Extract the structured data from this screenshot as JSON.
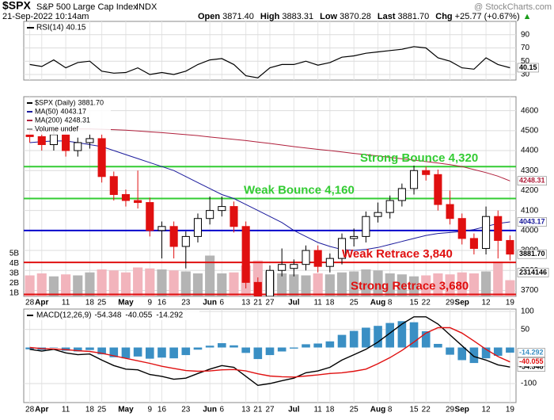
{
  "header": {
    "symbol": "$SPX",
    "name": "S&P 500 Large Cap Index",
    "exchange": "INDX",
    "date": "21-Sep-2022 10:14am",
    "quote": [
      {
        "label": "Open",
        "value": "3871.40"
      },
      {
        "label": "High",
        "value": "3883.31"
      },
      {
        "label": "Low",
        "value": "3870.28"
      },
      {
        "label": "Last",
        "value": "3881.70"
      },
      {
        "label": "Chg",
        "value": "+25.77 (+0.67%)"
      }
    ],
    "arrow": "▲",
    "watermark": "@ StockCharts.com"
  },
  "chart_data": [
    {
      "type": "line",
      "ylim": [
        21.6,
        110
      ],
      "yticks": [
        90,
        70,
        50,
        30
      ],
      "series": [
        {
          "name": "RSI(14)",
          "color": "#000000",
          "values": [
            45,
            42,
            52,
            40,
            48,
            50,
            35,
            32,
            33,
            40,
            30,
            33,
            30,
            35,
            45,
            52,
            54,
            45,
            28,
            25,
            40,
            45,
            45,
            50,
            44,
            48,
            56,
            58,
            62,
            64,
            66,
            68,
            72,
            70,
            55,
            50,
            40,
            38,
            55,
            45,
            40.15
          ]
        }
      ]
    },
    {
      "type": "candlestick",
      "name": "$SPX (Daily)",
      "last_label": "3881.70",
      "categories": [
        "28",
        "Apr",
        null,
        "11",
        null,
        "18",
        "25",
        null,
        "May",
        null,
        "9",
        "16",
        null,
        "23",
        null,
        "Jun",
        "6",
        null,
        "13",
        "21",
        "27",
        null,
        "Jul",
        null,
        "11",
        "18",
        null,
        "25",
        null,
        "Aug",
        "8",
        null,
        "15",
        "22",
        null,
        "29",
        "Sep",
        null,
        "12",
        null,
        "19"
      ],
      "open": [
        4480,
        4470,
        4430,
        4480,
        4400,
        4440,
        4460,
        4270,
        4180,
        4150,
        4140,
        4000,
        4020,
        3920,
        3970,
        4060,
        4100,
        4120,
        4020,
        3740,
        3670,
        3800,
        3810,
        3830,
        3900,
        3820,
        3860,
        3960,
        3970,
        4070,
        4090,
        4150,
        4210,
        4300,
        4280,
        4130,
        4060,
        3960,
        3910,
        4070,
        3950
      ],
      "high": [
        4505,
        4495,
        4505,
        4505,
        4465,
        4485,
        4485,
        4295,
        4205,
        4300,
        4165,
        4045,
        4045,
        3995,
        4085,
        4170,
        4170,
        4145,
        4045,
        3765,
        3825,
        3910,
        3855,
        3925,
        3925,
        3885,
        3985,
        4010,
        4095,
        4140,
        4175,
        4235,
        4325,
        4320,
        4305,
        4200,
        4085,
        3985,
        4120,
        4100,
        3975
      ],
      "low": [
        4440,
        4400,
        4400,
        4370,
        4370,
        4410,
        4240,
        4150,
        4120,
        4110,
        3970,
        3860,
        3860,
        3810,
        3940,
        4030,
        4070,
        3990,
        3710,
        3640,
        3640,
        3770,
        3770,
        3800,
        3790,
        3790,
        3830,
        3920,
        3940,
        4040,
        4060,
        4120,
        4180,
        4250,
        4100,
        4030,
        3930,
        3880,
        3880,
        3860,
        3850
      ],
      "close": [
        4470,
        4430,
        4480,
        4400,
        4440,
        4460,
        4270,
        4180,
        4150,
        4140,
        4000,
        4020,
        3920,
        3970,
        4060,
        4100,
        4120,
        4020,
        3740,
        3670,
        3800,
        3830,
        3830,
        3900,
        3820,
        3860,
        3960,
        3970,
        4070,
        4090,
        4150,
        4210,
        4300,
        4280,
        4130,
        4060,
        3960,
        3910,
        4070,
        3950,
        3881.7
      ],
      "up_color": "#000000",
      "down_color": "#e01010",
      "ylim": [
        3670,
        4670
      ],
      "yticks": [
        3700,
        3800,
        3900,
        4000,
        4100,
        4200,
        4300,
        4400,
        4500,
        4600
      ],
      "series": [
        {
          "name": "MA(50)",
          "color": "#1a1a9c",
          "values": [
            4440,
            4445,
            4448,
            4448,
            4440,
            4430,
            4420,
            4400,
            4380,
            4360,
            4340,
            4320,
            4300,
            4270,
            4240,
            4210,
            4180,
            4160,
            4130,
            4100,
            4070,
            4040,
            4000,
            3970,
            3940,
            3920,
            3905,
            3900,
            3905,
            3915,
            3930,
            3945,
            3960,
            3975,
            3985,
            3990,
            3995,
            4005,
            4020,
            4035,
            4043.17
          ]
        },
        {
          "name": "MA(200)",
          "color": "#b0203c",
          "values": [
            4500,
            4503,
            4505,
            4507,
            4508,
            4508,
            4507,
            4505,
            4502,
            4498,
            4494,
            4490,
            4485,
            4480,
            4475,
            4468,
            4462,
            4456,
            4450,
            4443,
            4436,
            4428,
            4420,
            4413,
            4406,
            4400,
            4393,
            4386,
            4380,
            4373,
            4366,
            4359,
            4352,
            4345,
            4338,
            4330,
            4320,
            4305,
            4290,
            4272,
            4248.31
          ]
        }
      ],
      "volume": {
        "name": "Volume undef",
        "up_color": "#b4b4b4",
        "down_color": "#f2b4bc",
        "last_label": "2314146",
        "values": [
          2.8,
          3.0,
          2.7,
          2.9,
          2.8,
          3.1,
          3.4,
          3.3,
          3.1,
          3.6,
          3.5,
          3.4,
          3.3,
          3.2,
          3.0,
          4.8,
          3.0,
          3.1,
          3.8,
          4.3,
          3.2,
          3.0,
          2.9,
          2.8,
          3.0,
          2.9,
          3.1,
          3.2,
          3.4,
          3.3,
          3.0,
          2.9,
          2.7,
          2.8,
          3.0,
          2.9,
          3.1,
          3.0,
          3.2,
          4.2,
          2.314146
        ],
        "ylim": [
          0.68,
          20.84
        ],
        "yticks": [
          {
            "value": 1,
            "label": "1B"
          },
          {
            "value": 2,
            "label": "2B"
          },
          {
            "value": 3,
            "label": "3B"
          },
          {
            "value": 4,
            "label": "4B"
          },
          {
            "value": 5,
            "label": "5B"
          }
        ]
      },
      "annotations": [
        {
          "label": "Strong Bounce 4,320",
          "value": 4320,
          "color": "#33cc33"
        },
        {
          "label": "Weak Bounce 4,160",
          "value": 4160,
          "color": "#33cc33"
        },
        {
          "value": 4000,
          "color": "#0000cc"
        },
        {
          "label": "Weak Retrace 3,840",
          "value": 3840,
          "color": "#e01010"
        },
        {
          "label": "Strong Retrace 3,680",
          "value": 3680,
          "color": "#e01010"
        }
      ]
    },
    {
      "type": "macd",
      "ylim": [
        -152.7,
        106.6
      ],
      "yticks": [
        100,
        50,
        -100
      ],
      "name": "MACD(12,26,9)",
      "series": [
        {
          "name": "MACD",
          "color": "#000000",
          "values": [
            -5,
            -10,
            -5,
            -15,
            -20,
            -18,
            -35,
            -50,
            -60,
            -62,
            -75,
            -80,
            -88,
            -85,
            -72,
            -60,
            -50,
            -55,
            -80,
            -105,
            -100,
            -92,
            -85,
            -70,
            -65,
            -55,
            -35,
            -20,
            -5,
            15,
            40,
            65,
            85,
            85,
            65,
            35,
            5,
            -25,
            -35,
            -48,
            -54.348
          ]
        },
        {
          "name": "Signal",
          "color": "#e01010",
          "values": [
            0,
            -3,
            -4,
            -6,
            -9,
            -11,
            -16,
            -23,
            -30,
            -37,
            -44,
            -52,
            -58,
            -64,
            -66,
            -65,
            -62,
            -61,
            -65,
            -73,
            -79,
            -81,
            -82,
            -79,
            -76,
            -72,
            -70,
            -66,
            -60,
            -45,
            -28,
            -8,
            15,
            40,
            55,
            55,
            40,
            18,
            -5,
            -25,
            -40.055
          ]
        }
      ],
      "histogram": {
        "color": "#3a8fc4",
        "values": [
          -5,
          -7,
          -1,
          -9,
          -11,
          -7,
          -19,
          -27,
          -30,
          -25,
          -31,
          -28,
          -30,
          -21,
          -6,
          5,
          12,
          6,
          -15,
          -32,
          -21,
          -11,
          -3,
          9,
          11,
          17,
          35,
          46,
          55,
          60,
          68,
          73,
          70,
          45,
          10,
          -20,
          -35,
          -43,
          -30,
          -23,
          -14.292
        ]
      }
    }
  ]
}
